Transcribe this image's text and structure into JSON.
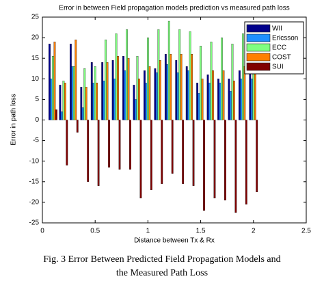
{
  "chart_data": {
    "type": "bar",
    "title": "Error in between Field propagation models prediction vs measured path loss",
    "x_label": "Distance between Tx & Rx",
    "y_label": "Error in path loss",
    "caption": [
      "Fig. 3 Error Between Predicted Field Propagation Models and",
      "the Measured Path Loss"
    ],
    "x": [
      0.1,
      0.2,
      0.3,
      0.4,
      0.5,
      0.6,
      0.7,
      0.8,
      0.9,
      1.0,
      1.1,
      1.2,
      1.3,
      1.4,
      1.5,
      1.6,
      1.7,
      1.8,
      1.9,
      2.0
    ],
    "series": [
      {
        "name": "WII",
        "color": "#00008b",
        "values": [
          18.5,
          8.5,
          18.5,
          8,
          14,
          14,
          14.5,
          15.5,
          8.5,
          12,
          12.5,
          16,
          14.5,
          13,
          9,
          11,
          10,
          10,
          12,
          12
        ]
      },
      {
        "name": "Ericsson",
        "color": "#1e8fff",
        "values": [
          10,
          2,
          13,
          3,
          9,
          9.5,
          10,
          12,
          5,
          9,
          11.5,
          13.5,
          11.5,
          12,
          6.5,
          9,
          9,
          7,
          10,
          10
        ]
      },
      {
        "name": "ECC",
        "color": "#80ff80",
        "values": [
          15.5,
          9.5,
          13,
          12.5,
          13,
          19.5,
          21,
          22,
          15.5,
          20,
          22,
          24,
          22,
          21.5,
          18,
          19,
          20,
          18.5,
          21,
          21
        ]
      },
      {
        "name": "COST",
        "color": "#ff7f00",
        "values": [
          19,
          9,
          19.5,
          8,
          9,
          14,
          15.5,
          15,
          10,
          13,
          14.5,
          16,
          16,
          16,
          10,
          12,
          12,
          9.5,
          13,
          12
        ]
      },
      {
        "name": "SUI",
        "color": "#800000",
        "values": [
          2.5,
          -11,
          -3,
          -15,
          -16,
          -11.5,
          -12,
          -12,
          -19,
          -17,
          -15.5,
          -13,
          -15.5,
          -16,
          -22,
          -19,
          -19.5,
          -22.5,
          -20.5,
          -17.5
        ]
      }
    ],
    "xlim": [
      0,
      2.5
    ],
    "xticks": [
      0,
      0.5,
      1,
      1.5,
      2,
      2.5
    ],
    "ylim": [
      -25,
      25
    ],
    "yticks": [
      -25,
      -20,
      -15,
      -10,
      -5,
      0,
      5,
      10,
      15,
      20,
      25
    ],
    "legend": "upper right"
  }
}
